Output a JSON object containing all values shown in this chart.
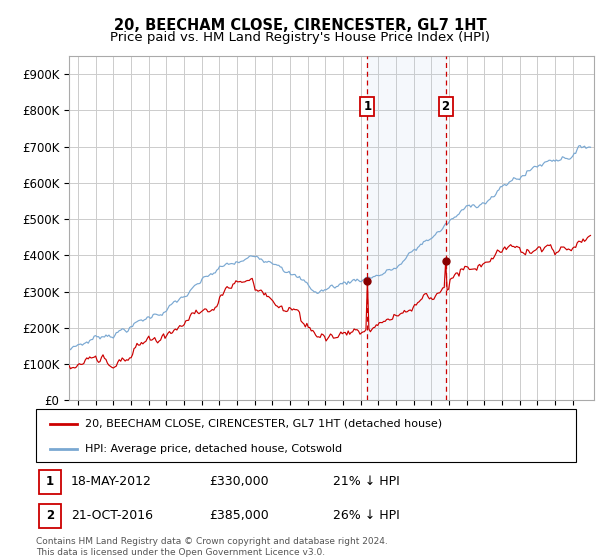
{
  "title": "20, BEECHAM CLOSE, CIRENCESTER, GL7 1HT",
  "subtitle": "Price paid vs. HM Land Registry's House Price Index (HPI)",
  "ylim": [
    0,
    950000
  ],
  "yticks": [
    0,
    100000,
    200000,
    300000,
    400000,
    500000,
    600000,
    700000,
    800000,
    900000
  ],
  "ytick_labels": [
    "£0",
    "£100K",
    "£200K",
    "£300K",
    "£400K",
    "£500K",
    "£600K",
    "£700K",
    "£800K",
    "£900K"
  ],
  "xlim_start": 1995.5,
  "xlim_end": 2025.2,
  "marker1_x": 2012.38,
  "marker2_x": 2016.8,
  "marker1_date": "18-MAY-2012",
  "marker1_price": "£330,000",
  "marker1_hpi": "21% ↓ HPI",
  "marker2_date": "21-OCT-2016",
  "marker2_price": "£385,000",
  "marker2_hpi": "26% ↓ HPI",
  "line_property_color": "#cc0000",
  "line_hpi_color": "#7aa8d2",
  "marker_dot_color": "#880000",
  "legend_property_label": "20, BEECHAM CLOSE, CIRENCESTER, GL7 1HT (detached house)",
  "legend_hpi_label": "HPI: Average price, detached house, Cotswold",
  "footer_text": "Contains HM Land Registry data © Crown copyright and database right 2024.\nThis data is licensed under the Open Government Licence v3.0.",
  "background_color": "#ffffff",
  "grid_color": "#cccccc"
}
